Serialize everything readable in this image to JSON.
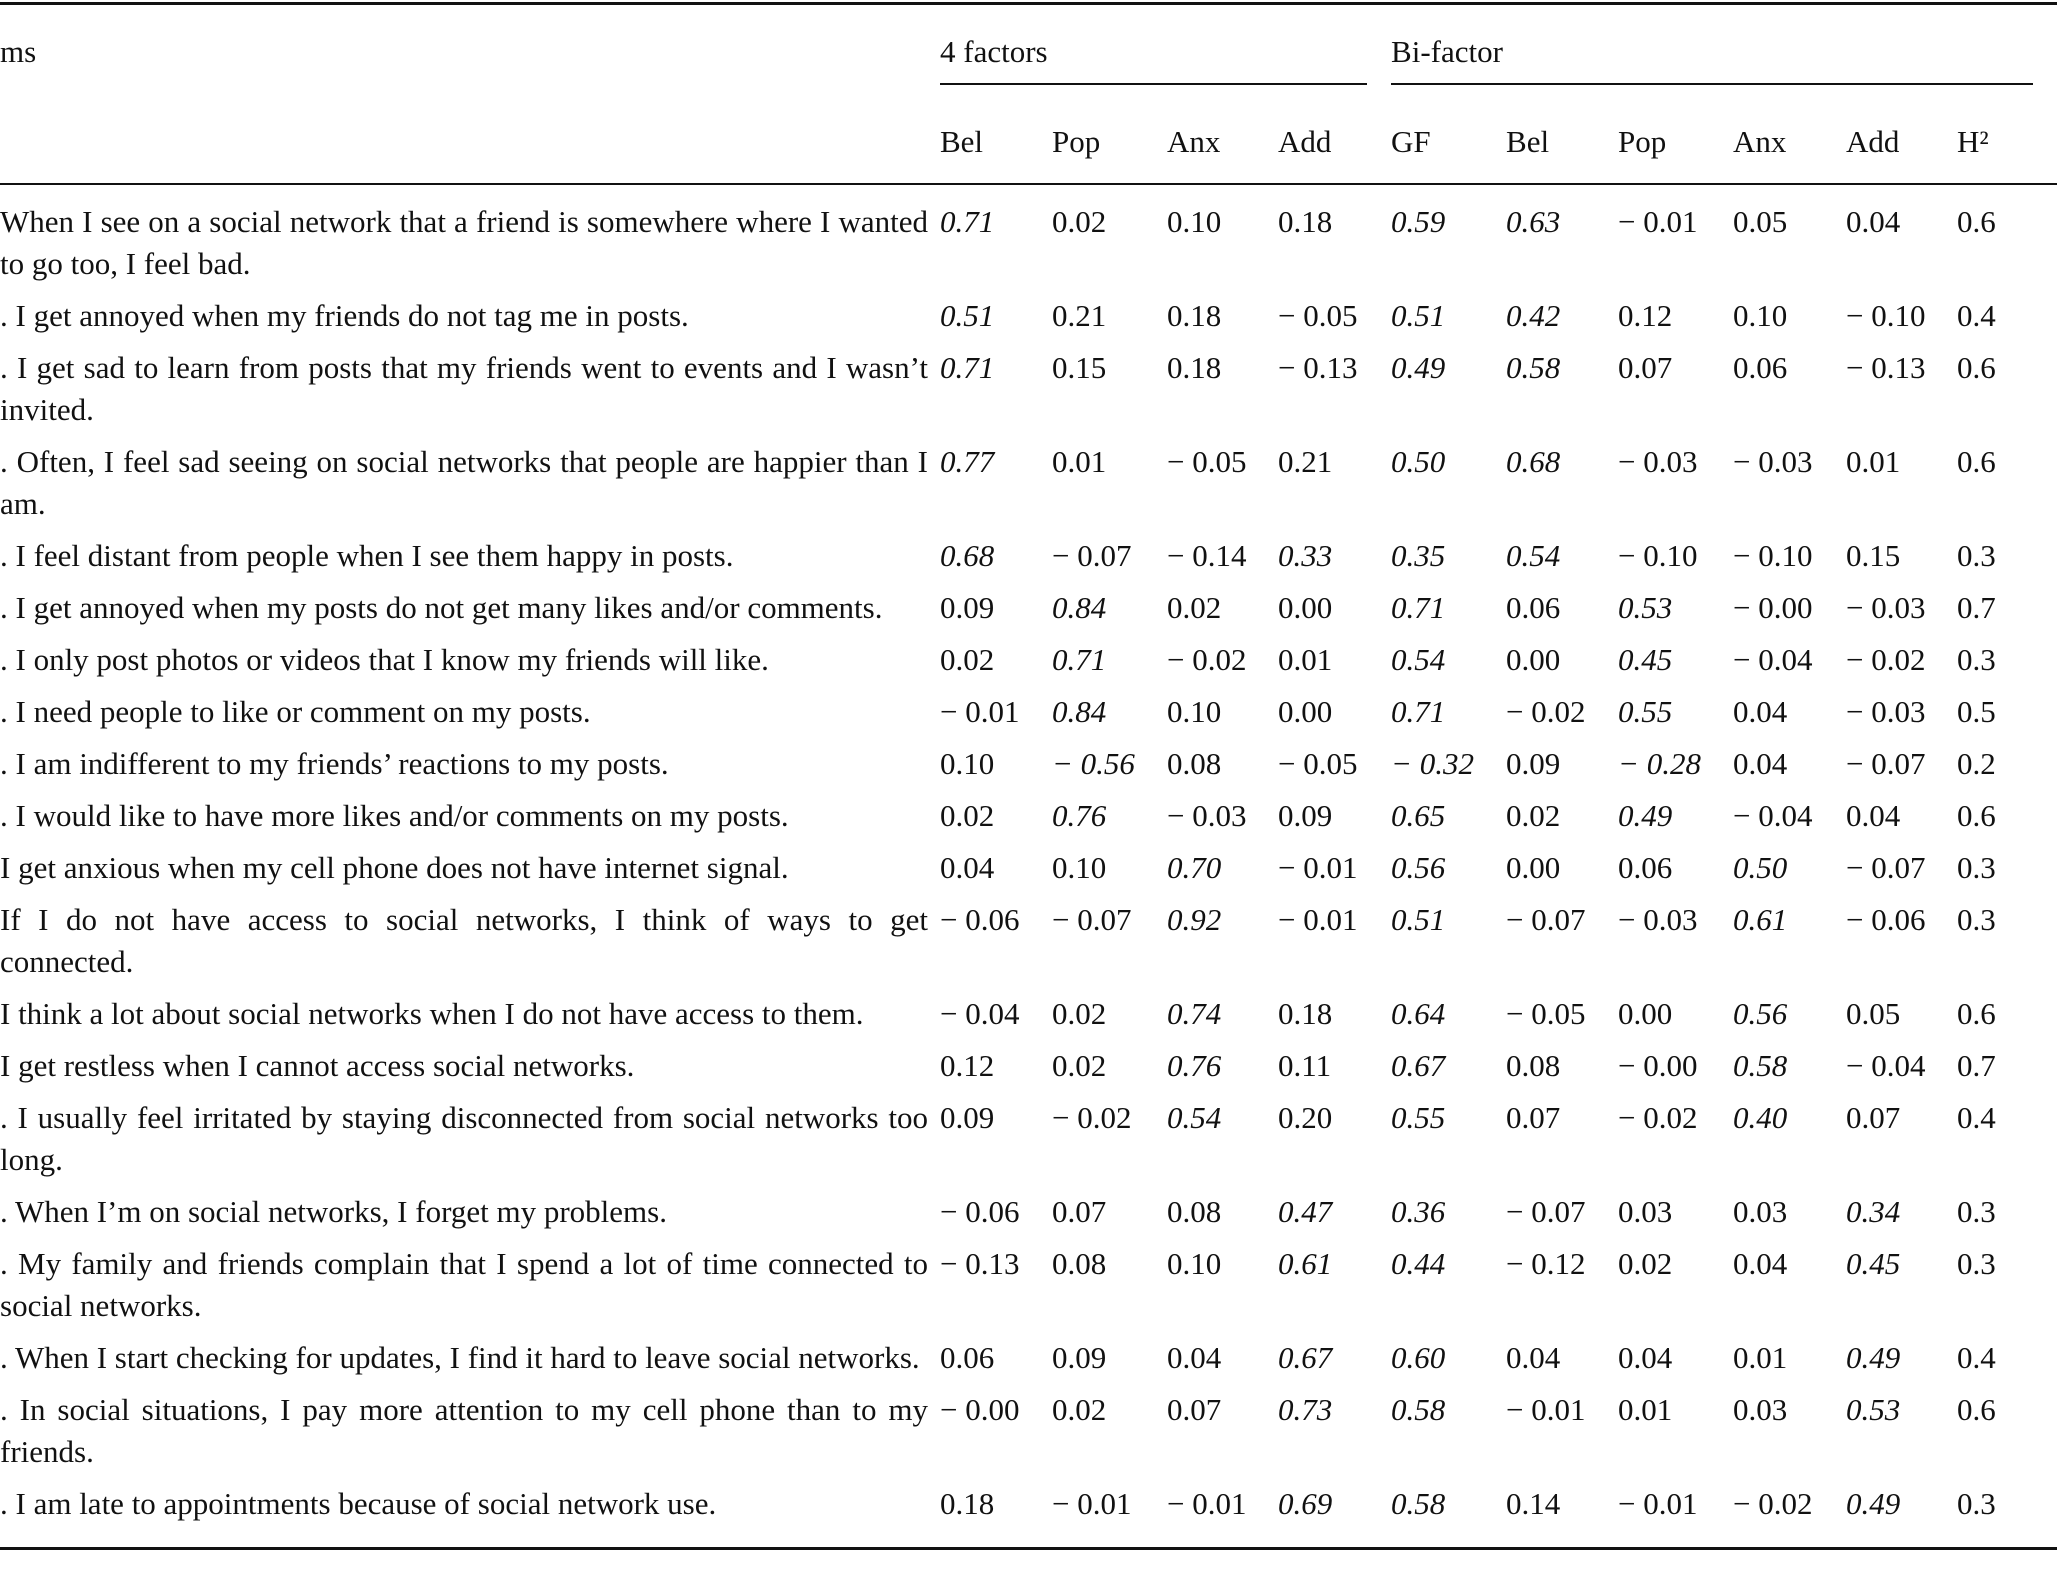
{
  "table": {
    "header": {
      "items": "ms",
      "groups": [
        "4 factors",
        "Bi-factor"
      ],
      "columns": [
        "Bel",
        "Pop",
        "Anx",
        "Add",
        "GF",
        "Bel",
        "Pop",
        "Anx",
        "Add",
        "H²"
      ],
      "group_spans": [
        4,
        6
      ]
    },
    "rows": [
      {
        "item": "When I see on a social network that a friend is somewhere where I wanted to go too, I feel bad.",
        "values": [
          "0.71",
          "0.02",
          "0.10",
          "0.18",
          "0.59",
          "0.63",
          "− 0.01",
          "0.05",
          "0.04",
          "0.6"
        ],
        "italic": [
          0,
          4,
          5
        ]
      },
      {
        "item": ". I get annoyed when my friends do not tag me in posts.",
        "values": [
          "0.51",
          "0.21",
          "0.18",
          "− 0.05",
          "0.51",
          "0.42",
          "0.12",
          "0.10",
          "− 0.10",
          "0.4"
        ],
        "italic": [
          0,
          4,
          5
        ]
      },
      {
        "item": ". I get sad to learn from posts that my friends went to events and I wasn’t invited.",
        "values": [
          "0.71",
          "0.15",
          "0.18",
          "− 0.13",
          "0.49",
          "0.58",
          "0.07",
          "0.06",
          "− 0.13",
          "0.6"
        ],
        "italic": [
          0,
          4,
          5
        ]
      },
      {
        "item": ". Often, I feel sad seeing on social networks that people are happier than I am.",
        "values": [
          "0.77",
          "0.01",
          "− 0.05",
          "0.21",
          "0.50",
          "0.68",
          "− 0.03",
          "− 0.03",
          "0.01",
          "0.6"
        ],
        "italic": [
          0,
          4,
          5
        ]
      },
      {
        "item": ". I feel distant from people when I see them happy in posts.",
        "values": [
          "0.68",
          "− 0.07",
          "− 0.14",
          "0.33",
          "0.35",
          "0.54",
          "− 0.10",
          "− 0.10",
          "0.15",
          "0.3"
        ],
        "italic": [
          0,
          3,
          4,
          5
        ]
      },
      {
        "item": ". I get annoyed when my posts do not get many likes and/or com­ments.",
        "values": [
          "0.09",
          "0.84",
          "0.02",
          "0.00",
          "0.71",
          "0.06",
          "0.53",
          "− 0.00",
          "− 0.03",
          "0.7"
        ],
        "italic": [
          1,
          4,
          6
        ]
      },
      {
        "item": ". I only post photos or videos that I know my friends will like.",
        "values": [
          "0.02",
          "0.71",
          "− 0.02",
          "0.01",
          "0.54",
          "0.00",
          "0.45",
          "− 0.04",
          "− 0.02",
          "0.3"
        ],
        "italic": [
          1,
          4,
          6
        ]
      },
      {
        "item": ". I need people to like or comment on my posts.",
        "values": [
          "− 0.01",
          "0.84",
          "0.10",
          "0.00",
          "0.71",
          "− 0.02",
          "0.55",
          "0.04",
          "− 0.03",
          "0.5"
        ],
        "italic": [
          1,
          4,
          6
        ]
      },
      {
        "item": ". I am indifferent to my friends’ reactions to my posts.",
        "values": [
          "0.10",
          "− 0.56",
          "0.08",
          "− 0.05",
          "− 0.32",
          "0.09",
          "− 0.28",
          "0.04",
          "− 0.07",
          "0.2"
        ],
        "italic": [
          1,
          4,
          6
        ]
      },
      {
        "item": ". I would like to have more likes and/or comments on my posts.",
        "values": [
          "0.02",
          "0.76",
          "− 0.03",
          "0.09",
          "0.65",
          "0.02",
          "0.49",
          "− 0.04",
          "0.04",
          "0.6"
        ],
        "italic": [
          1,
          4,
          6
        ]
      },
      {
        "item": "I get anxious when my cell phone does not have internet signal.",
        "values": [
          "0.04",
          "0.10",
          "0.70",
          "− 0.01",
          "0.56",
          "0.00",
          "0.06",
          "0.50",
          "− 0.07",
          "0.3"
        ],
        "italic": [
          2,
          4,
          7
        ]
      },
      {
        "item": "If I do not have access to social networks, I think of ways to get connected.",
        "values": [
          "− 0.06",
          "− 0.07",
          "0.92",
          "− 0.01",
          "0.51",
          "− 0.07",
          "− 0.03",
          "0.61",
          "− 0.06",
          "0.3"
        ],
        "italic": [
          2,
          4,
          7
        ]
      },
      {
        "item": "I think a lot about social networks when I do not have access to them.",
        "values": [
          "− 0.04",
          "0.02",
          "0.74",
          "0.18",
          "0.64",
          "− 0.05",
          "0.00",
          "0.56",
          "0.05",
          "0.6"
        ],
        "italic": [
          2,
          4,
          7
        ]
      },
      {
        "item": "I get restless when I cannot access social networks.",
        "values": [
          "0.12",
          "0.02",
          "0.76",
          "0.11",
          "0.67",
          "0.08",
          "− 0.00",
          "0.58",
          "− 0.04",
          "0.7"
        ],
        "italic": [
          2,
          4,
          7
        ]
      },
      {
        "item": ". I usually feel irritated by staying disconnected from social networks too long.",
        "values": [
          "0.09",
          "− 0.02",
          "0.54",
          "0.20",
          "0.55",
          "0.07",
          "− 0.02",
          "0.40",
          "0.07",
          "0.4"
        ],
        "italic": [
          2,
          4,
          7
        ]
      },
      {
        "item": ". When I’m on social networks, I forget my problems.",
        "values": [
          "− 0.06",
          "0.07",
          "0.08",
          "0.47",
          "0.36",
          "− 0.07",
          "0.03",
          "0.03",
          "0.34",
          "0.3"
        ],
        "italic": [
          3,
          4,
          8
        ]
      },
      {
        "item": ". My family and friends complain that I spend a lot of time connected to social networks.",
        "values": [
          "− 0.13",
          "0.08",
          "0.10",
          "0.61",
          "0.44",
          "− 0.12",
          "0.02",
          "0.04",
          "0.45",
          "0.3"
        ],
        "italic": [
          3,
          4,
          8
        ]
      },
      {
        "item": ". When I start checking for updates, I find it hard to leave social networks.",
        "values": [
          "0.06",
          "0.09",
          "0.04",
          "0.67",
          "0.60",
          "0.04",
          "0.04",
          "0.01",
          "0.49",
          "0.4"
        ],
        "italic": [
          3,
          4,
          8
        ]
      },
      {
        "item": ". In social situations, I pay more attention to my cell phone than to my friends.",
        "values": [
          "− 0.00",
          "0.02",
          "0.07",
          "0.73",
          "0.58",
          "− 0.01",
          "0.01",
          "0.03",
          "0.53",
          "0.6"
        ],
        "italic": [
          3,
          4,
          8
        ]
      },
      {
        "item": ". I am late to appointments because of social network use.",
        "values": [
          "0.18",
          "− 0.01",
          "− 0.01",
          "0.69",
          "0.58",
          "0.14",
          "− 0.01",
          "− 0.02",
          "0.49",
          "0.3"
        ],
        "italic": [
          3,
          4,
          8
        ]
      }
    ]
  }
}
